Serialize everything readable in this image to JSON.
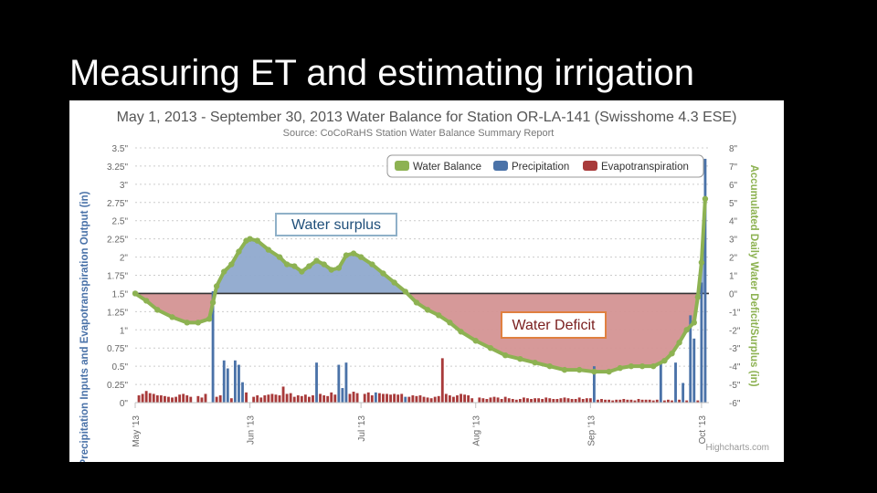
{
  "slide": {
    "title": "Measuring ET and estimating irrigation"
  },
  "callouts": {
    "surplus": "Water surplus",
    "deficit": "Water Deficit"
  },
  "colors": {
    "water_balance": "#8db252",
    "precipitation": "#4a72a8",
    "evapotranspiration": "#a83a3a",
    "surplus_fill": "#8fa9cd",
    "deficit_fill": "#d49494",
    "left_axis_label": "#4a72a8",
    "right_axis_label": "#8db252",
    "title_text": "#555555"
  },
  "chart_data": {
    "type": "bar",
    "title": "May 1, 2013 - September 30, 2013 Water Balance for Station OR-LA-141 (Swisshome 4.3 ESE)",
    "subtitle": "Source:  CoCoRaHS Station Water Balance Summary Report",
    "ylabel": "Precipitation Inputs and Evapotranspiration Output (in)",
    "y2label": "Accumulated Daily Water Deficit/Surplus (in)",
    "credits": "Highcharts.com",
    "legend": {
      "position": "top-right",
      "items": [
        "Water Balance",
        "Precipitation",
        "Evapotranspiration"
      ]
    },
    "ylim": [
      0,
      3.5
    ],
    "y2lim": [
      -6,
      8
    ],
    "y_ticks": [
      "0\"",
      "0.25\"",
      "0.5\"",
      "0.75\"",
      "1\"",
      "1.25\"",
      "1.5\"",
      "1.75\"",
      "2\"",
      "2.25\"",
      "2.5\"",
      "2.75\"",
      "3\"",
      "3.25\"",
      "3.5\""
    ],
    "y2_ticks": [
      "-6\"",
      "-5\"",
      "-4\"",
      "-3\"",
      "-2\"",
      "-1\"",
      "0\"",
      "1\"",
      "2\"",
      "3\"",
      "4\"",
      "5\"",
      "6\"",
      "7\"",
      "8\""
    ],
    "x_ticks": [
      {
        "label": "May '13",
        "day": 0
      },
      {
        "label": "Jun '13",
        "day": 31
      },
      {
        "label": "Jul '13",
        "day": 61
      },
      {
        "label": "Aug '13",
        "day": 92
      },
      {
        "label": "Sep '13",
        "day": 123
      },
      {
        "label": "Oct '13",
        "day": 153
      }
    ],
    "water_balance": {
      "name": "Water Balance",
      "points": [
        [
          0,
          0
        ],
        [
          3,
          -0.4
        ],
        [
          6,
          -0.9
        ],
        [
          10,
          -1.3
        ],
        [
          14,
          -1.6
        ],
        [
          17,
          -1.6
        ],
        [
          20,
          -1.4
        ],
        [
          21,
          -0.5
        ],
        [
          22,
          0.4
        ],
        [
          24,
          1.2
        ],
        [
          26,
          1.6
        ],
        [
          28,
          2.3
        ],
        [
          30,
          2.9
        ],
        [
          31,
          3.0
        ],
        [
          33,
          2.9
        ],
        [
          36,
          2.4
        ],
        [
          39,
          2.0
        ],
        [
          41,
          1.6
        ],
        [
          43,
          1.5
        ],
        [
          45,
          1.2
        ],
        [
          47,
          1.5
        ],
        [
          49,
          1.8
        ],
        [
          51,
          1.6
        ],
        [
          53,
          1.3
        ],
        [
          55,
          1.4
        ],
        [
          57,
          2.1
        ],
        [
          59,
          2.2
        ],
        [
          61,
          2.0
        ],
        [
          64,
          1.6
        ],
        [
          67,
          1.1
        ],
        [
          70,
          0.6
        ],
        [
          73,
          0.1
        ],
        [
          76,
          -0.5
        ],
        [
          79,
          -0.9
        ],
        [
          82,
          -1.2
        ],
        [
          85,
          -1.6
        ],
        [
          88,
          -2.1
        ],
        [
          92,
          -2.6
        ],
        [
          96,
          -3.0
        ],
        [
          100,
          -3.4
        ],
        [
          104,
          -3.6
        ],
        [
          108,
          -3.8
        ],
        [
          112,
          -4.0
        ],
        [
          116,
          -4.2
        ],
        [
          120,
          -4.2
        ],
        [
          124,
          -4.3
        ],
        [
          128,
          -4.3
        ],
        [
          131,
          -4.1
        ],
        [
          134,
          -4.0
        ],
        [
          137,
          -4.0
        ],
        [
          140,
          -4.0
        ],
        [
          143,
          -3.7
        ],
        [
          145,
          -3.3
        ],
        [
          147,
          -2.7
        ],
        [
          149,
          -2.0
        ],
        [
          151,
          -1.6
        ],
        [
          152,
          -0.2
        ],
        [
          153,
          1.7
        ],
        [
          154,
          5.2
        ]
      ]
    },
    "precipitation": {
      "name": "Precipitation",
      "points": [
        [
          21,
          1.53
        ],
        [
          24,
          0.58
        ],
        [
          25,
          0.47
        ],
        [
          27,
          0.58
        ],
        [
          28,
          0.52
        ],
        [
          29,
          0.28
        ],
        [
          49,
          0.55
        ],
        [
          55,
          0.52
        ],
        [
          56,
          0.2
        ],
        [
          57,
          0.55
        ],
        [
          65,
          0.14
        ],
        [
          73,
          0.08
        ],
        [
          124,
          0.5
        ],
        [
          142,
          0.55
        ],
        [
          146,
          0.55
        ],
        [
          148,
          0.27
        ],
        [
          150,
          1.2
        ],
        [
          151,
          0.88
        ],
        [
          153,
          1.65
        ],
        [
          154,
          3.35
        ]
      ]
    },
    "evapotranspiration": {
      "name": "Evapotranspiration",
      "points": [
        [
          1,
          0.1
        ],
        [
          2,
          0.12
        ],
        [
          3,
          0.16
        ],
        [
          4,
          0.13
        ],
        [
          5,
          0.12
        ],
        [
          6,
          0.1
        ],
        [
          7,
          0.1
        ],
        [
          8,
          0.09
        ],
        [
          9,
          0.08
        ],
        [
          10,
          0.07
        ],
        [
          11,
          0.08
        ],
        [
          12,
          0.11
        ],
        [
          13,
          0.12
        ],
        [
          14,
          0.1
        ],
        [
          15,
          0.08
        ],
        [
          17,
          0.09
        ],
        [
          18,
          0.07
        ],
        [
          19,
          0.12
        ],
        [
          22,
          0.08
        ],
        [
          23,
          0.1
        ],
        [
          26,
          0.06
        ],
        [
          30,
          0.14
        ],
        [
          32,
          0.08
        ],
        [
          33,
          0.1
        ],
        [
          34,
          0.07
        ],
        [
          35,
          0.1
        ],
        [
          36,
          0.11
        ],
        [
          37,
          0.12
        ],
        [
          38,
          0.11
        ],
        [
          39,
          0.1
        ],
        [
          40,
          0.22
        ],
        [
          41,
          0.12
        ],
        [
          42,
          0.13
        ],
        [
          43,
          0.08
        ],
        [
          44,
          0.1
        ],
        [
          45,
          0.09
        ],
        [
          46,
          0.11
        ],
        [
          47,
          0.08
        ],
        [
          48,
          0.1
        ],
        [
          50,
          0.12
        ],
        [
          51,
          0.1
        ],
        [
          52,
          0.09
        ],
        [
          53,
          0.14
        ],
        [
          54,
          0.11
        ],
        [
          58,
          0.12
        ],
        [
          59,
          0.15
        ],
        [
          60,
          0.13
        ],
        [
          62,
          0.12
        ],
        [
          63,
          0.14
        ],
        [
          64,
          0.1
        ],
        [
          66,
          0.13
        ],
        [
          67,
          0.12
        ],
        [
          68,
          0.12
        ],
        [
          69,
          0.11
        ],
        [
          70,
          0.12
        ],
        [
          71,
          0.11
        ],
        [
          72,
          0.12
        ],
        [
          74,
          0.08
        ],
        [
          75,
          0.1
        ],
        [
          76,
          0.09
        ],
        [
          77,
          0.1
        ],
        [
          78,
          0.08
        ],
        [
          79,
          0.07
        ],
        [
          80,
          0.06
        ],
        [
          81,
          0.08
        ],
        [
          82,
          0.09
        ],
        [
          83,
          0.61
        ],
        [
          84,
          0.12
        ],
        [
          85,
          0.1
        ],
        [
          86,
          0.08
        ],
        [
          87,
          0.1
        ],
        [
          88,
          0.12
        ],
        [
          89,
          0.11
        ],
        [
          90,
          0.1
        ],
        [
          91,
          0.06
        ],
        [
          93,
          0.07
        ],
        [
          94,
          0.06
        ],
        [
          95,
          0.05
        ],
        [
          96,
          0.07
        ],
        [
          97,
          0.08
        ],
        [
          98,
          0.07
        ],
        [
          99,
          0.05
        ],
        [
          100,
          0.08
        ],
        [
          101,
          0.06
        ],
        [
          102,
          0.05
        ],
        [
          103,
          0.04
        ],
        [
          104,
          0.05
        ],
        [
          105,
          0.07
        ],
        [
          106,
          0.06
        ],
        [
          107,
          0.05
        ],
        [
          108,
          0.06
        ],
        [
          109,
          0.06
        ],
        [
          110,
          0.05
        ],
        [
          111,
          0.07
        ],
        [
          112,
          0.06
        ],
        [
          113,
          0.05
        ],
        [
          114,
          0.05
        ],
        [
          115,
          0.06
        ],
        [
          116,
          0.07
        ],
        [
          117,
          0.06
        ],
        [
          118,
          0.05
        ],
        [
          119,
          0.05
        ],
        [
          120,
          0.07
        ],
        [
          121,
          0.05
        ],
        [
          122,
          0.06
        ],
        [
          123,
          0.06
        ],
        [
          125,
          0.04
        ],
        [
          126,
          0.05
        ],
        [
          127,
          0.04
        ],
        [
          128,
          0.04
        ],
        [
          129,
          0.03
        ],
        [
          130,
          0.04
        ],
        [
          131,
          0.04
        ],
        [
          132,
          0.05
        ],
        [
          133,
          0.04
        ],
        [
          134,
          0.04
        ],
        [
          135,
          0.03
        ],
        [
          136,
          0.05
        ],
        [
          137,
          0.04
        ],
        [
          138,
          0.04
        ],
        [
          139,
          0.04
        ],
        [
          140,
          0.03
        ],
        [
          141,
          0.04
        ],
        [
          143,
          0.03
        ],
        [
          144,
          0.04
        ],
        [
          145,
          0.03
        ],
        [
          147,
          0.04
        ],
        [
          149,
          0.03
        ],
        [
          152,
          0.03
        ]
      ]
    }
  }
}
